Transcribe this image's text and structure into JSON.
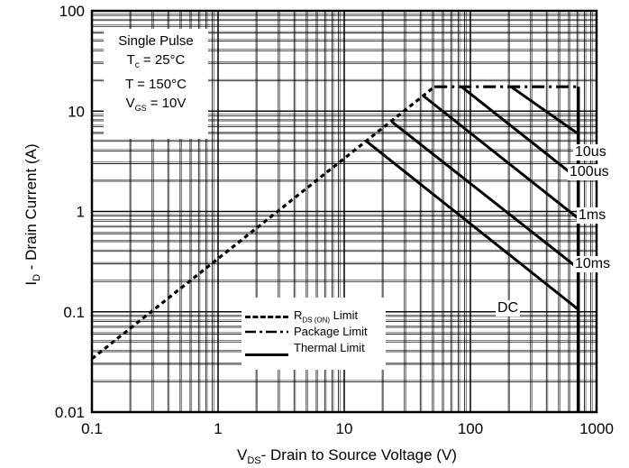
{
  "chart_data": {
    "type": "line",
    "xlabel_main": "V",
    "xlabel_sub": "DS",
    "xlabel_rest": "- Drain to Source Voltage (V)",
    "ylabel_main": "I",
    "ylabel_sub": "D",
    "ylabel_rest": " - Drain Current (A)",
    "x_scale": "log",
    "y_scale": "log",
    "xlim": [
      0.1,
      1000
    ],
    "ylim": [
      0.01,
      100
    ],
    "x_ticks": [
      0.1,
      1,
      10,
      100,
      1000
    ],
    "x_tick_labels": [
      "0.1",
      "1",
      "10",
      "100",
      "1000"
    ],
    "y_ticks": [
      0.01,
      0.1,
      1,
      10,
      100
    ],
    "y_tick_labels": [
      "0.01",
      "0.1",
      "1",
      "10",
      "100"
    ],
    "grid": true,
    "conditions": {
      "line1": "Single Pulse",
      "line2_main": "T",
      "line2_sub": "c",
      "line2_rest": " = 25°C",
      "line3": "T = 150°C",
      "line4_main": "V",
      "line4_sub": "GS",
      "line4_rest": " = 10V"
    },
    "legend": {
      "rds_main": "R",
      "rds_sub": "DS (ON)",
      "rds_rest": " Limit",
      "package": "Package Limit",
      "thermal": "Thermal Limit"
    },
    "series": [
      {
        "name": "R_DS(ON) Limit",
        "style": "dashed",
        "x": [
          0.1,
          52
        ],
        "y": [
          0.034,
          17.5
        ]
      },
      {
        "name": "Package Limit",
        "style": "dashdot",
        "x": [
          52,
          720
        ],
        "y": [
          17.5,
          17.5
        ]
      },
      {
        "name": "10us",
        "style": "solid",
        "x": [
          210,
          720
        ],
        "y": [
          17.5,
          5.9
        ]
      },
      {
        "name": "100us",
        "style": "solid",
        "x": [
          85,
          720
        ],
        "y": [
          17.5,
          2.1
        ]
      },
      {
        "name": "1ms",
        "style": "solid",
        "x": [
          43,
          720
        ],
        "y": [
          14,
          0.85
        ]
      },
      {
        "name": "10ms",
        "style": "solid",
        "x": [
          24,
          720
        ],
        "y": [
          7.8,
          0.27
        ]
      },
      {
        "name": "DC",
        "style": "solid",
        "x": [
          15,
          720
        ],
        "y": [
          5,
          0.105
        ]
      },
      {
        "name": "max_voltage",
        "style": "solid",
        "x": [
          720,
          720
        ],
        "y": [
          0.01,
          17.5
        ]
      }
    ],
    "curve_labels": [
      "10us",
      "100us",
      "1ms",
      "10ms",
      "DC"
    ]
  }
}
